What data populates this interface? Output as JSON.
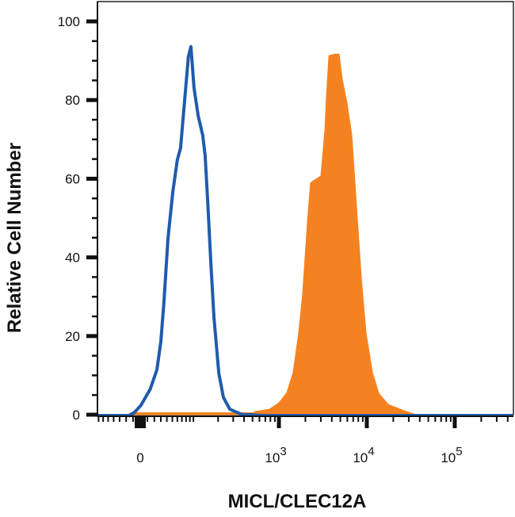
{
  "chart_data": {
    "type": "area",
    "title": "",
    "xlabel": "MICL/CLEC12A",
    "ylabel": "Relative Cell Number",
    "x_scale": "biexponential (logicle)",
    "xlim": [
      -73,
      460000
    ],
    "ylim": [
      0,
      100
    ],
    "grid": false,
    "legend": "none",
    "x_ticks": [
      {
        "value": 0,
        "label": "0",
        "sup": ""
      },
      {
        "value": 1000,
        "label": "10",
        "sup": "3"
      },
      {
        "value": 10000,
        "label": "10",
        "sup": "4"
      },
      {
        "value": 100000,
        "label": "10",
        "sup": "5"
      }
    ],
    "y_ticks": [
      {
        "value": 0,
        "label": "0"
      },
      {
        "value": 20,
        "label": "20"
      },
      {
        "value": 40,
        "label": "40"
      },
      {
        "value": 60,
        "label": "60"
      },
      {
        "value": 80,
        "label": "80"
      },
      {
        "value": 100,
        "label": "100"
      }
    ],
    "series": [
      {
        "style": "outline",
        "color": "#1f5bab",
        "x": [
          -73,
          -16,
          -8,
          1,
          14,
          24,
          30,
          35,
          42,
          51,
          60,
          67,
          74,
          86,
          93,
          102,
          115,
          131,
          140,
          150,
          164,
          179,
          204,
          231,
          274,
          383,
          473,
          632,
          460000
        ],
        "y": [
          0,
          0,
          0.8,
          2.6,
          6.7,
          11.7,
          18.8,
          28.8,
          45,
          57,
          65,
          68,
          77,
          91.3,
          93.8,
          83.3,
          76.2,
          71.2,
          66.1,
          55,
          38.9,
          24.8,
          10.7,
          4.6,
          1.6,
          0.2,
          0.2,
          0,
          0
        ]
      },
      {
        "style": "filled",
        "color": "#f58220",
        "x": [
          -8,
          -7,
          514,
          535,
          779,
          1000,
          1230,
          1450,
          1680,
          1865,
          2110,
          2290,
          3000,
          3330,
          3480,
          3700,
          4270,
          4840,
          5260,
          5960,
          6740,
          7640,
          8650,
          9800,
          11600,
          13700,
          17500,
          26600,
          36300
        ],
        "y": [
          0,
          0.5,
          0.5,
          0.8,
          1.4,
          3,
          5.6,
          10.7,
          20.8,
          30.8,
          49,
          59,
          60.7,
          72.2,
          81.3,
          91.3,
          91.7,
          91.7,
          85.3,
          79.2,
          71.2,
          53,
          34.9,
          20.8,
          10.7,
          5.4,
          2.6,
          1,
          0
        ]
      }
    ]
  }
}
